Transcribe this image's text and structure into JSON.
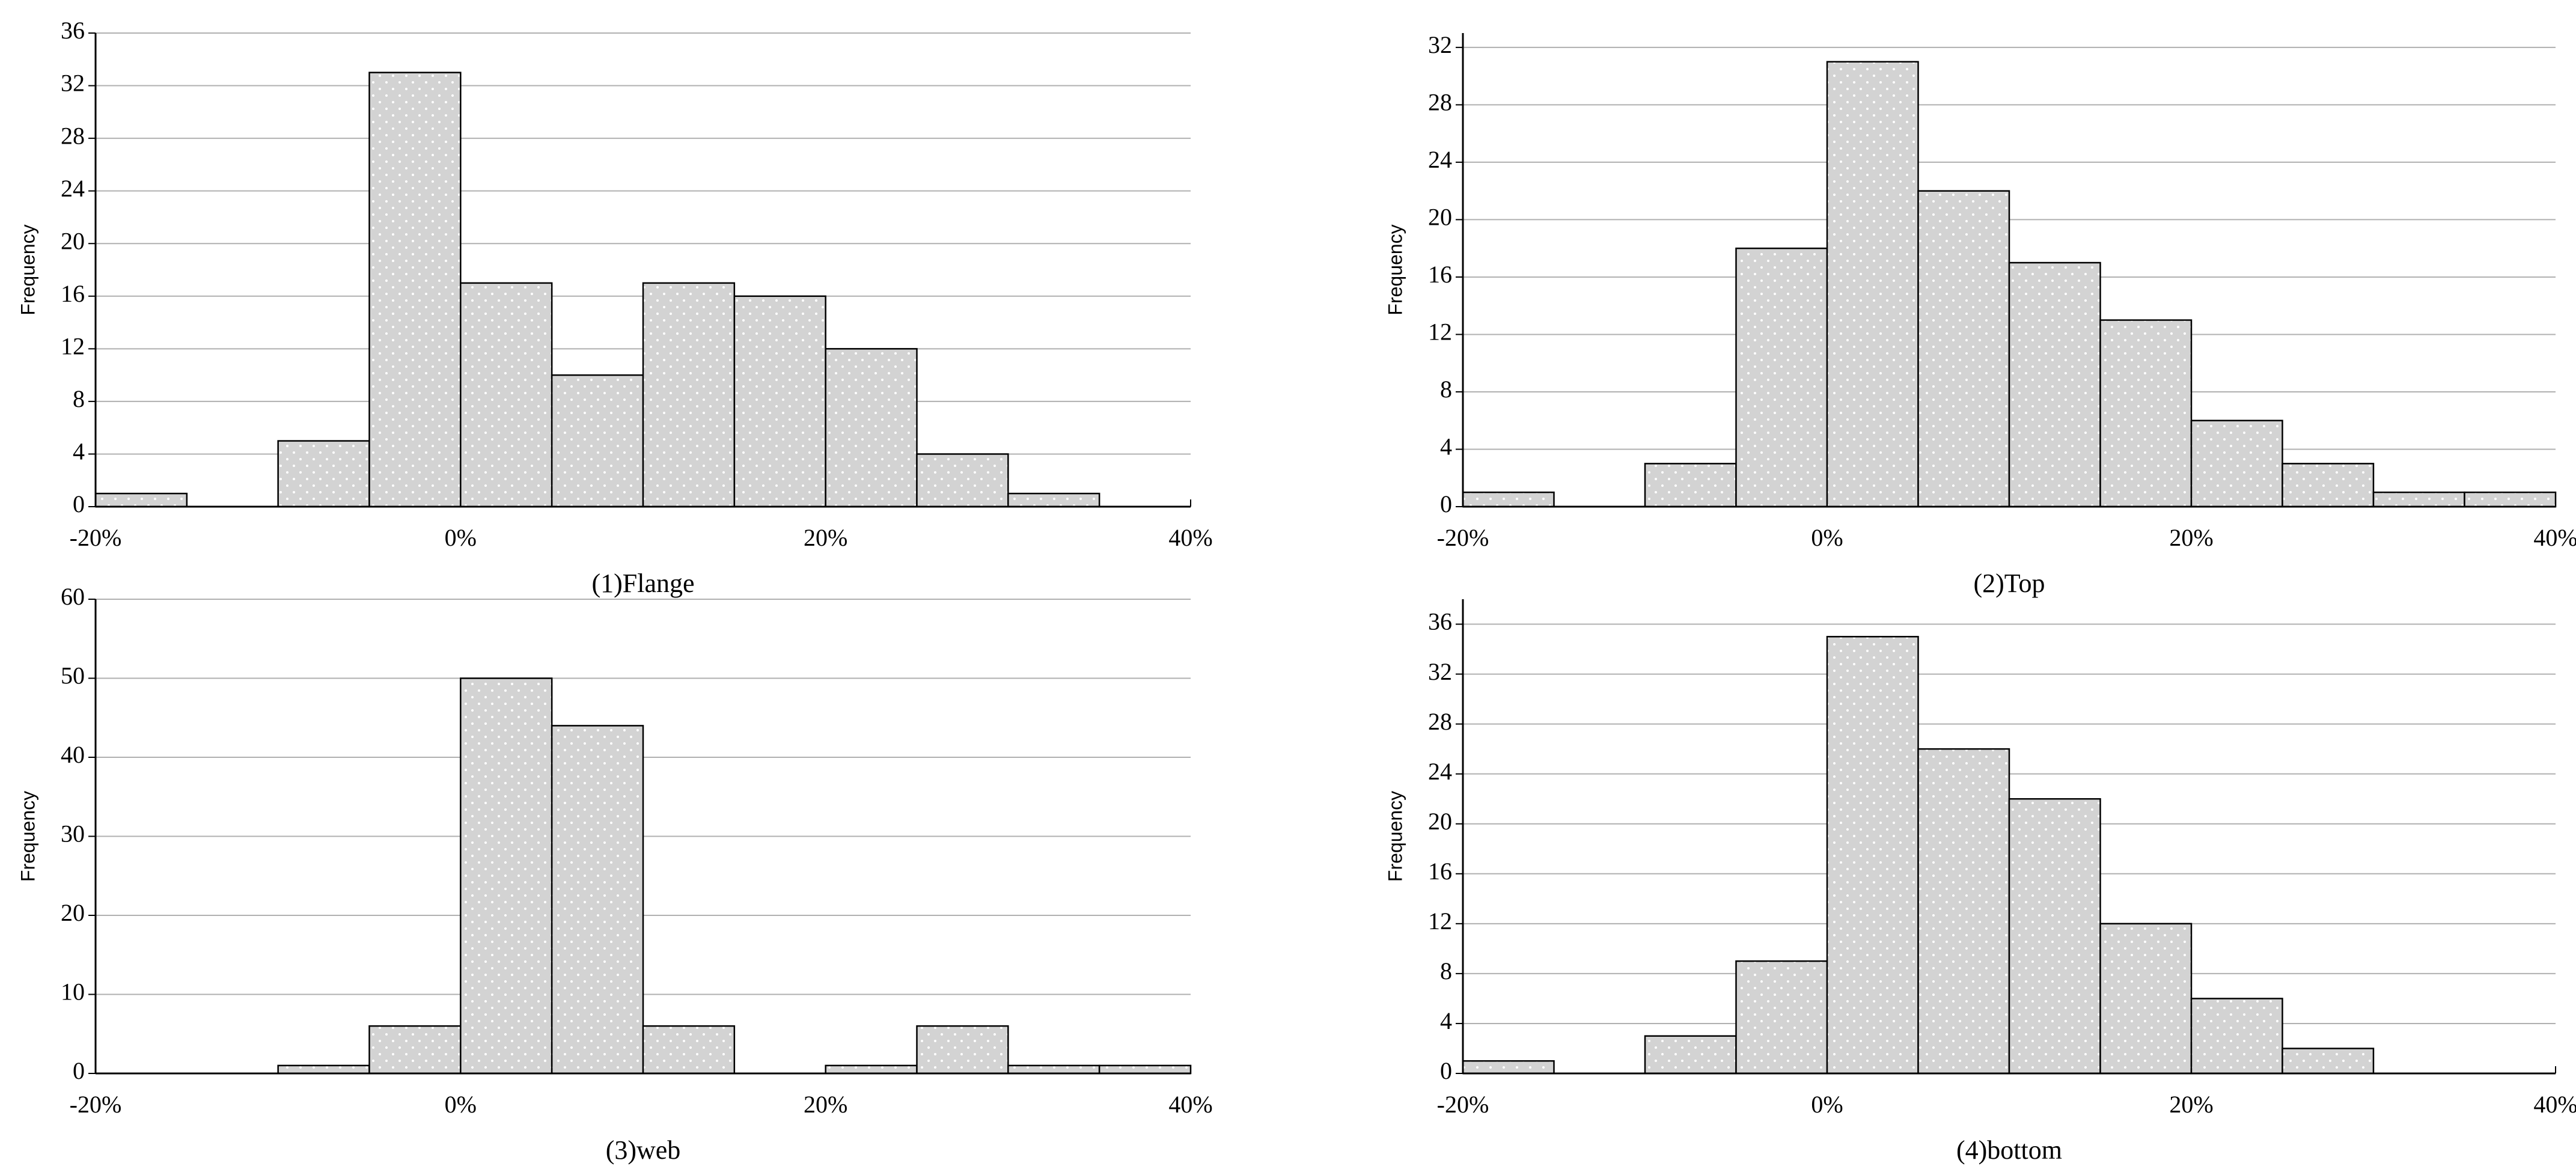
{
  "chart_data": [
    {
      "type": "histogram",
      "xlabel": "(1)Flange",
      "ylabel": "Frequency",
      "bins": [
        -20,
        -15,
        -10,
        -5,
        0,
        5,
        10,
        15,
        20,
        25,
        30,
        35,
        40
      ],
      "values": [
        1,
        0,
        5,
        33,
        17,
        10,
        17,
        16,
        12,
        4,
        1,
        0
      ],
      "color": "#d3d3d3",
      "grid": true,
      "xlim": [
        -20,
        40
      ],
      "xticks": [
        {
          "value": -20,
          "label": "-20%"
        },
        {
          "value": 0,
          "label": "0%"
        },
        {
          "value": 20,
          "label": "20%"
        },
        {
          "value": 40,
          "label": "40%"
        }
      ],
      "ylim": [
        0,
        36
      ],
      "yticks": [
        0,
        4,
        8,
        12,
        16,
        20,
        24,
        28,
        32,
        36
      ]
    },
    {
      "type": "histogram",
      "xlabel": "(2)Top",
      "ylabel": "Frequency",
      "bins": [
        -20,
        -15,
        -10,
        -5,
        0,
        5,
        10,
        15,
        20,
        25,
        30,
        35,
        40
      ],
      "values": [
        1,
        0,
        3,
        18,
        31,
        22,
        17,
        13,
        6,
        3,
        1,
        1
      ],
      "color": "#d3d3d3",
      "grid": true,
      "xlim": [
        -20,
        40
      ],
      "xticks": [
        {
          "value": -20,
          "label": "-20%"
        },
        {
          "value": 0,
          "label": "0%"
        },
        {
          "value": 20,
          "label": "20%"
        },
        {
          "value": 40,
          "label": "40%"
        }
      ],
      "ylim": [
        0,
        33
      ],
      "yticks": [
        0,
        4,
        8,
        12,
        16,
        20,
        24,
        28,
        32
      ]
    },
    {
      "type": "histogram",
      "xlabel": "(3)web",
      "ylabel": "Frequency",
      "bins": [
        -20,
        -15,
        -10,
        -5,
        0,
        5,
        10,
        15,
        20,
        25,
        30,
        35,
        40
      ],
      "values": [
        0,
        0,
        1,
        6,
        50,
        44,
        6,
        0,
        1,
        6,
        1,
        1
      ],
      "color": "#d3d3d3",
      "grid": true,
      "xlim": [
        -20,
        40
      ],
      "xticks": [
        {
          "value": -20,
          "label": "-20%"
        },
        {
          "value": 0,
          "label": "0%"
        },
        {
          "value": 20,
          "label": "20%"
        },
        {
          "value": 40,
          "label": "40%"
        }
      ],
      "ylim": [
        0,
        60
      ],
      "yticks": [
        0,
        10,
        20,
        30,
        40,
        50,
        60
      ]
    },
    {
      "type": "histogram",
      "xlabel": "(4)bottom",
      "ylabel": "Frequency",
      "bins": [
        -20,
        -15,
        -10,
        -5,
        0,
        5,
        10,
        15,
        20,
        25,
        30,
        35,
        40
      ],
      "values": [
        1,
        0,
        3,
        9,
        35,
        26,
        22,
        12,
        6,
        2,
        0,
        0
      ],
      "color": "#d3d3d3",
      "grid": true,
      "xlim": [
        -20,
        40
      ],
      "xticks": [
        {
          "value": -20,
          "label": "-20%"
        },
        {
          "value": 0,
          "label": "0%"
        },
        {
          "value": 20,
          "label": "20%"
        },
        {
          "value": 40,
          "label": "40%"
        }
      ],
      "ylim": [
        0,
        38
      ],
      "yticks": [
        0,
        4,
        8,
        12,
        16,
        20,
        24,
        28,
        32,
        36
      ]
    }
  ]
}
